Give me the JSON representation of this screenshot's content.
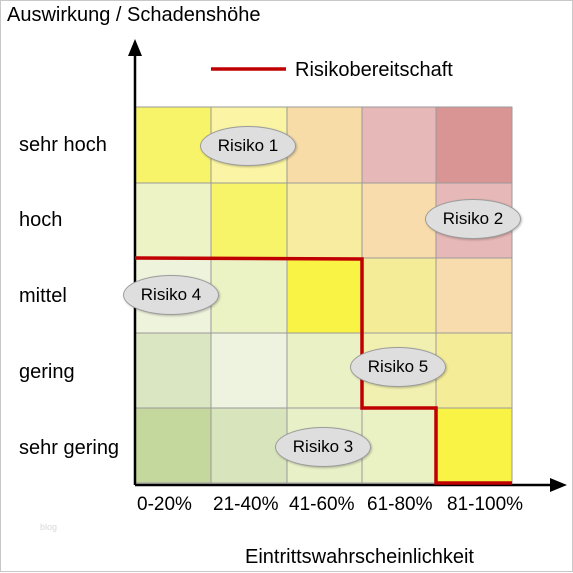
{
  "y_axis_title": "Auswirkung / Schadenshöhe",
  "x_axis_title": "Eintrittswahrscheinlichkeit",
  "legend": {
    "label": "Risikobereitschaft",
    "line_color": "#c00000"
  },
  "impact_levels": [
    "sehr hoch",
    "hoch",
    "mittel",
    "gering",
    "sehr gering"
  ],
  "probability_levels": [
    "0-20%",
    "21-40%",
    "41-60%",
    "61-80%",
    "81-100%"
  ],
  "cell_colors": [
    [
      "#f7f46a",
      "#faf4a4",
      "#f7dca8",
      "#e6b8b7",
      "#d99594"
    ],
    [
      "#eef3c5",
      "#f7f46a",
      "#f8eca0",
      "#f8dcab",
      "#e6b8b7"
    ],
    [
      "#eef3dc",
      "#ebf2c4",
      "#f8f345",
      "#f5ec98",
      "#f8dcad"
    ],
    [
      "#dae6c2",
      "#eef3e0",
      "#eaf1c4",
      "#f1f0b0",
      "#f5ec98"
    ],
    [
      "#c4d79c",
      "#d8e4bc",
      "#e8f0c8",
      "#eaf1c2",
      "#f8f345"
    ]
  ],
  "risks": [
    {
      "label": "Risiko 1",
      "impact": "sehr hoch",
      "probability": "21-40%"
    },
    {
      "label": "Risiko 2",
      "impact": "hoch",
      "probability": "81-100%"
    },
    {
      "label": "Risiko 3",
      "impact": "sehr gering",
      "probability": "41-60%"
    },
    {
      "label": "Risiko 4",
      "impact": "mittel",
      "probability": "0-20%"
    },
    {
      "label": "Risiko 5",
      "impact": "gering",
      "probability": "61-80%"
    }
  ],
  "watermark": "blog"
}
